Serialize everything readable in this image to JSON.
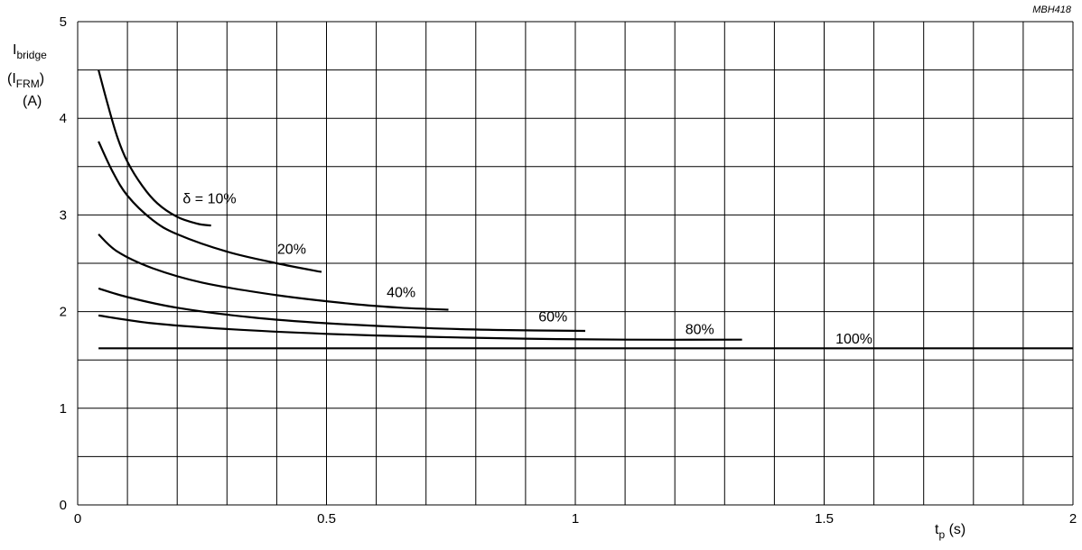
{
  "chart_data": {
    "type": "line",
    "title": "",
    "figure_code": "MBH418",
    "xlabel": {
      "main": "t",
      "sub": "p",
      "unit": " (s)"
    },
    "ylabel": {
      "line1_main": "I",
      "line1_sub": "bridge",
      "line2_open": "(I",
      "line2_sub": "FRM",
      "line2_close": ")",
      "line3": "(A)"
    },
    "xlim": [
      0,
      2
    ],
    "ylim": [
      0,
      5
    ],
    "x_ticks": [
      {
        "value": 0,
        "label": "0"
      },
      {
        "value": 0.5,
        "label": "0.5"
      },
      {
        "value": 1,
        "label": "1"
      },
      {
        "value": 1.5,
        "label": "1.5"
      },
      {
        "value": 2,
        "label": "2"
      }
    ],
    "y_ticks": [
      {
        "value": 0,
        "label": "0"
      },
      {
        "value": 1,
        "label": "1"
      },
      {
        "value": 2,
        "label": "2"
      },
      {
        "value": 3,
        "label": "3"
      },
      {
        "value": 4,
        "label": "4"
      },
      {
        "value": 5,
        "label": "5"
      }
    ],
    "grid": {
      "x_step": 0.1,
      "y_step": 0.5
    },
    "legend": "none",
    "series": [
      {
        "label": "δ = 10%",
        "label_pos": {
          "x": 0.265,
          "y": 3.12
        },
        "points": [
          [
            0.042,
            4.5
          ],
          [
            0.06,
            4.15
          ],
          [
            0.08,
            3.8
          ],
          [
            0.1,
            3.55
          ],
          [
            0.13,
            3.3
          ],
          [
            0.16,
            3.12
          ],
          [
            0.2,
            2.98
          ],
          [
            0.24,
            2.91
          ],
          [
            0.268,
            2.89
          ]
        ]
      },
      {
        "label": "20%",
        "label_pos": {
          "x": 0.43,
          "y": 2.6
        },
        "points": [
          [
            0.042,
            3.76
          ],
          [
            0.07,
            3.45
          ],
          [
            0.1,
            3.2
          ],
          [
            0.15,
            2.95
          ],
          [
            0.2,
            2.8
          ],
          [
            0.3,
            2.62
          ],
          [
            0.4,
            2.5
          ],
          [
            0.49,
            2.41
          ]
        ]
      },
      {
        "label": "40%",
        "label_pos": {
          "x": 0.65,
          "y": 2.15
        },
        "points": [
          [
            0.042,
            2.8
          ],
          [
            0.08,
            2.62
          ],
          [
            0.15,
            2.45
          ],
          [
            0.25,
            2.3
          ],
          [
            0.4,
            2.17
          ],
          [
            0.55,
            2.08
          ],
          [
            0.65,
            2.04
          ],
          [
            0.745,
            2.02
          ]
        ]
      },
      {
        "label": "60%",
        "label_pos": {
          "x": 0.955,
          "y": 1.9
        },
        "points": [
          [
            0.042,
            2.24
          ],
          [
            0.1,
            2.15
          ],
          [
            0.2,
            2.04
          ],
          [
            0.35,
            1.94
          ],
          [
            0.5,
            1.88
          ],
          [
            0.7,
            1.83
          ],
          [
            0.85,
            1.81
          ],
          [
            1.02,
            1.8
          ]
        ]
      },
      {
        "label": "80%",
        "label_pos": {
          "x": 1.25,
          "y": 1.77
        },
        "points": [
          [
            0.042,
            1.96
          ],
          [
            0.15,
            1.88
          ],
          [
            0.3,
            1.82
          ],
          [
            0.5,
            1.77
          ],
          [
            0.7,
            1.74
          ],
          [
            0.9,
            1.72
          ],
          [
            1.1,
            1.71
          ],
          [
            1.335,
            1.71
          ]
        ]
      },
      {
        "label": "100%",
        "label_pos": {
          "x": 1.56,
          "y": 1.67
        },
        "points": [
          [
            0.042,
            1.62
          ],
          [
            2.0,
            1.62
          ]
        ]
      }
    ]
  }
}
